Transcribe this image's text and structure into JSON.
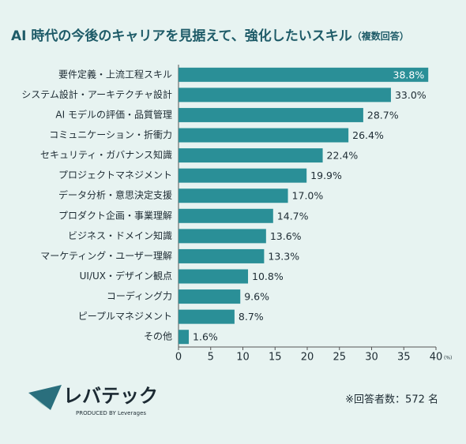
{
  "chart_data": {
    "type": "bar",
    "orientation": "horizontal",
    "title": "AI 時代の今後のキャリアを見据えて、強化したいスキル",
    "subtitle": "（複数回答）",
    "categories": [
      "要件定義・上流工程スキル",
      "システム設計・アーキテクチャ設計",
      "AI モデルの評価・品質管理",
      "コミュニケーション・折衝力",
      "セキュリティ・ガバナンス知識",
      "プロジェクトマネジメント",
      "データ分析・意思決定支援",
      "プロダクト企画・事業理解",
      "ビジネス・ドメイン知識",
      "マーケティング・ユーザー理解",
      "UI/UX・デザイン観点",
      "コーディング力",
      "ピープルマネジメント",
      "その他"
    ],
    "values": [
      38.8,
      33.0,
      28.7,
      26.4,
      22.4,
      19.9,
      17.0,
      14.7,
      13.6,
      13.3,
      10.8,
      9.6,
      8.7,
      1.6
    ],
    "value_labels": [
      "38.8%",
      "33.0%",
      "28.7%",
      "26.4%",
      "22.4%",
      "19.9%",
      "17.0%",
      "14.7%",
      "13.6%",
      "13.3%",
      "10.8%",
      "9.6%",
      "8.7%",
      "1.6%"
    ],
    "color": "#2a8f97",
    "xlim": [
      0,
      40
    ],
    "xticks": [
      0,
      5,
      10,
      15,
      20,
      25,
      30,
      35,
      40
    ],
    "x_unit": "(%)",
    "note": "※回答者数：572 名",
    "brand": "レバテック",
    "brand_tagline": "PRODUCED BY Leverages"
  }
}
